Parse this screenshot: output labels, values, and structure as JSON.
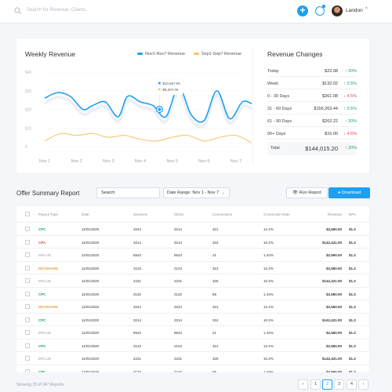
{
  "header": {
    "search_placeholder": "Search for Revenue, Clients...",
    "add_label": "+",
    "user_name": "Landon"
  },
  "weekly_revenue": {
    "title": "Weekly Revenue",
    "legend": [
      {
        "name": "Nov1-Nov7 Revenue",
        "color": "#1e9ff2"
      },
      {
        "name": "Sep1-Sep7 Revenue",
        "color": "#f5c46b"
      }
    ],
    "tooltip": [
      "$10,567.00",
      "$5,307.00"
    ]
  },
  "chart_data": {
    "type": "line",
    "title": "Weekly Revenue",
    "categories": [
      "Nov 1",
      "Nov 2",
      "Nov 3",
      "Nov 4",
      "Nov 5",
      "Nov 6",
      "Nov 7"
    ],
    "y_ticks": [
      "$40",
      "$30",
      "$20",
      "$10",
      "0"
    ],
    "ylim": [
      0,
      40
    ],
    "series": [
      {
        "name": "Nov1-Nov7 Revenue",
        "color": "#1e9ff2",
        "x": [
          0,
          0.4,
          0.8,
          1.2,
          1.5,
          1.9,
          2.3,
          2.6,
          3.0,
          3.4,
          3.8,
          4.2,
          4.6,
          5.0,
          5.4,
          5.8,
          6.2,
          6.5
        ],
        "values": [
          26,
          29,
          27,
          20,
          22,
          24,
          16,
          27,
          24,
          22,
          16,
          32,
          17,
          14,
          30,
          15,
          24,
          23
        ]
      },
      {
        "name": "Sep1-Sep7 Revenue",
        "color": "#f5c46b",
        "x": [
          0,
          0.5,
          1.0,
          1.5,
          2.0,
          2.5,
          3.0,
          3.5,
          4.0,
          4.5,
          5.0,
          5.5,
          6.0,
          6.5
        ],
        "values": [
          3,
          7,
          6,
          7,
          5,
          6,
          4,
          3,
          5,
          6,
          3,
          5,
          6,
          2
        ]
      }
    ],
    "grid": true,
    "legend_position": "top-right"
  },
  "revenue_changes": {
    "title": "Revenue Changes",
    "rows": [
      {
        "label": "Today",
        "value": "$22.08",
        "change": "↑ 20%",
        "dir": "up"
      },
      {
        "label": "Week",
        "value": "$132.02",
        "change": "↑ 0.5%",
        "dir": "up"
      },
      {
        "label": "0 - 30 Days",
        "value": "$361.08",
        "change": "↓ 4.5%",
        "dir": "down"
      },
      {
        "label": "31 - 60 Days",
        "value": "$156,263.44",
        "change": "↑ 0.5%",
        "dir": "up"
      },
      {
        "label": "61 - 90 Days",
        "value": "$262.22",
        "change": "↑ 20%",
        "dir": "up"
      },
      {
        "label": "90+ Days",
        "value": "$16.00",
        "change": "↓ 4.5%",
        "dir": "down"
      }
    ],
    "total": {
      "label": "Total",
      "value": "$144,015.20",
      "change": "↑ 20%",
      "dir": "up"
    }
  },
  "offer_summary": {
    "title": "Offer Summary Report",
    "search_placeholder": "Search",
    "date_range": "Date Range: Nov 1 - Nov 7",
    "run_label": "Run Report",
    "download_label": "Download",
    "columns": [
      "Payout Type",
      "Date",
      "Sessions",
      "Clicks",
      "Conversions",
      "Conversion Rate",
      "Revenue",
      "EPC"
    ],
    "rows": [
      [
        "CPC",
        "11/01/2020",
        "3244",
        "3214",
        "321",
        "12.4%",
        "$2,560.00",
        "$1.3"
      ],
      [
        "CPA",
        "11/01/2020",
        "3214",
        "3214",
        "324",
        "10.2%",
        "$142,421.00",
        "$1.3"
      ],
      [
        "INFLUE",
        "11/01/2020",
        "6543",
        "6543",
        "21",
        "1.44%",
        "$2,560.00",
        "$1.3"
      ],
      [
        "REVSHARE",
        "11/01/2020",
        "2134",
        "2134",
        "321",
        "12.4%",
        "$2,560.00",
        "$1.3"
      ],
      [
        "INFLUE",
        "11/01/2020",
        "2231",
        "2231",
        "326",
        "10.2%",
        "$142,421.00",
        "$1.3"
      ],
      [
        "CPC",
        "11/01/2020",
        "2132",
        "2132",
        "55",
        "1.44%",
        "$2,560.00",
        "$1.3"
      ],
      [
        "REVSHARE",
        "11/01/2020",
        "3244",
        "3244",
        "321",
        "12.4%",
        "$2,560.00",
        "$1.3"
      ],
      [
        "CPC",
        "11/01/2020",
        "3214",
        "3214",
        "324",
        "10.2%",
        "$142,421.00",
        "$1.3"
      ],
      [
        "INFLUE",
        "11/01/2020",
        "6543",
        "6543",
        "21",
        "1.44%",
        "$2,560.00",
        "$1.3"
      ],
      [
        "CPC",
        "11/01/2020",
        "2134",
        "2134",
        "321",
        "12.4%",
        "$2,560.00",
        "$1.3"
      ],
      [
        "INFLUE",
        "11/01/2020",
        "2231",
        "2231",
        "326",
        "10.2%",
        "$142,421.00",
        "$1.3"
      ],
      [
        "CPC",
        "11/01/2020",
        "2132",
        "2132",
        "55",
        "1.44%",
        "$2,560.00",
        "$1.3"
      ]
    ],
    "footer": "Showing 25 of 247 Reports",
    "pagination": [
      "‹",
      "1",
      "2",
      "3",
      "4",
      "›"
    ],
    "active_page": "2"
  },
  "colors": {
    "accent": "#1e9ff2",
    "secondary_series": "#f5c46b",
    "up": "#21a366",
    "down": "#e54848"
  }
}
